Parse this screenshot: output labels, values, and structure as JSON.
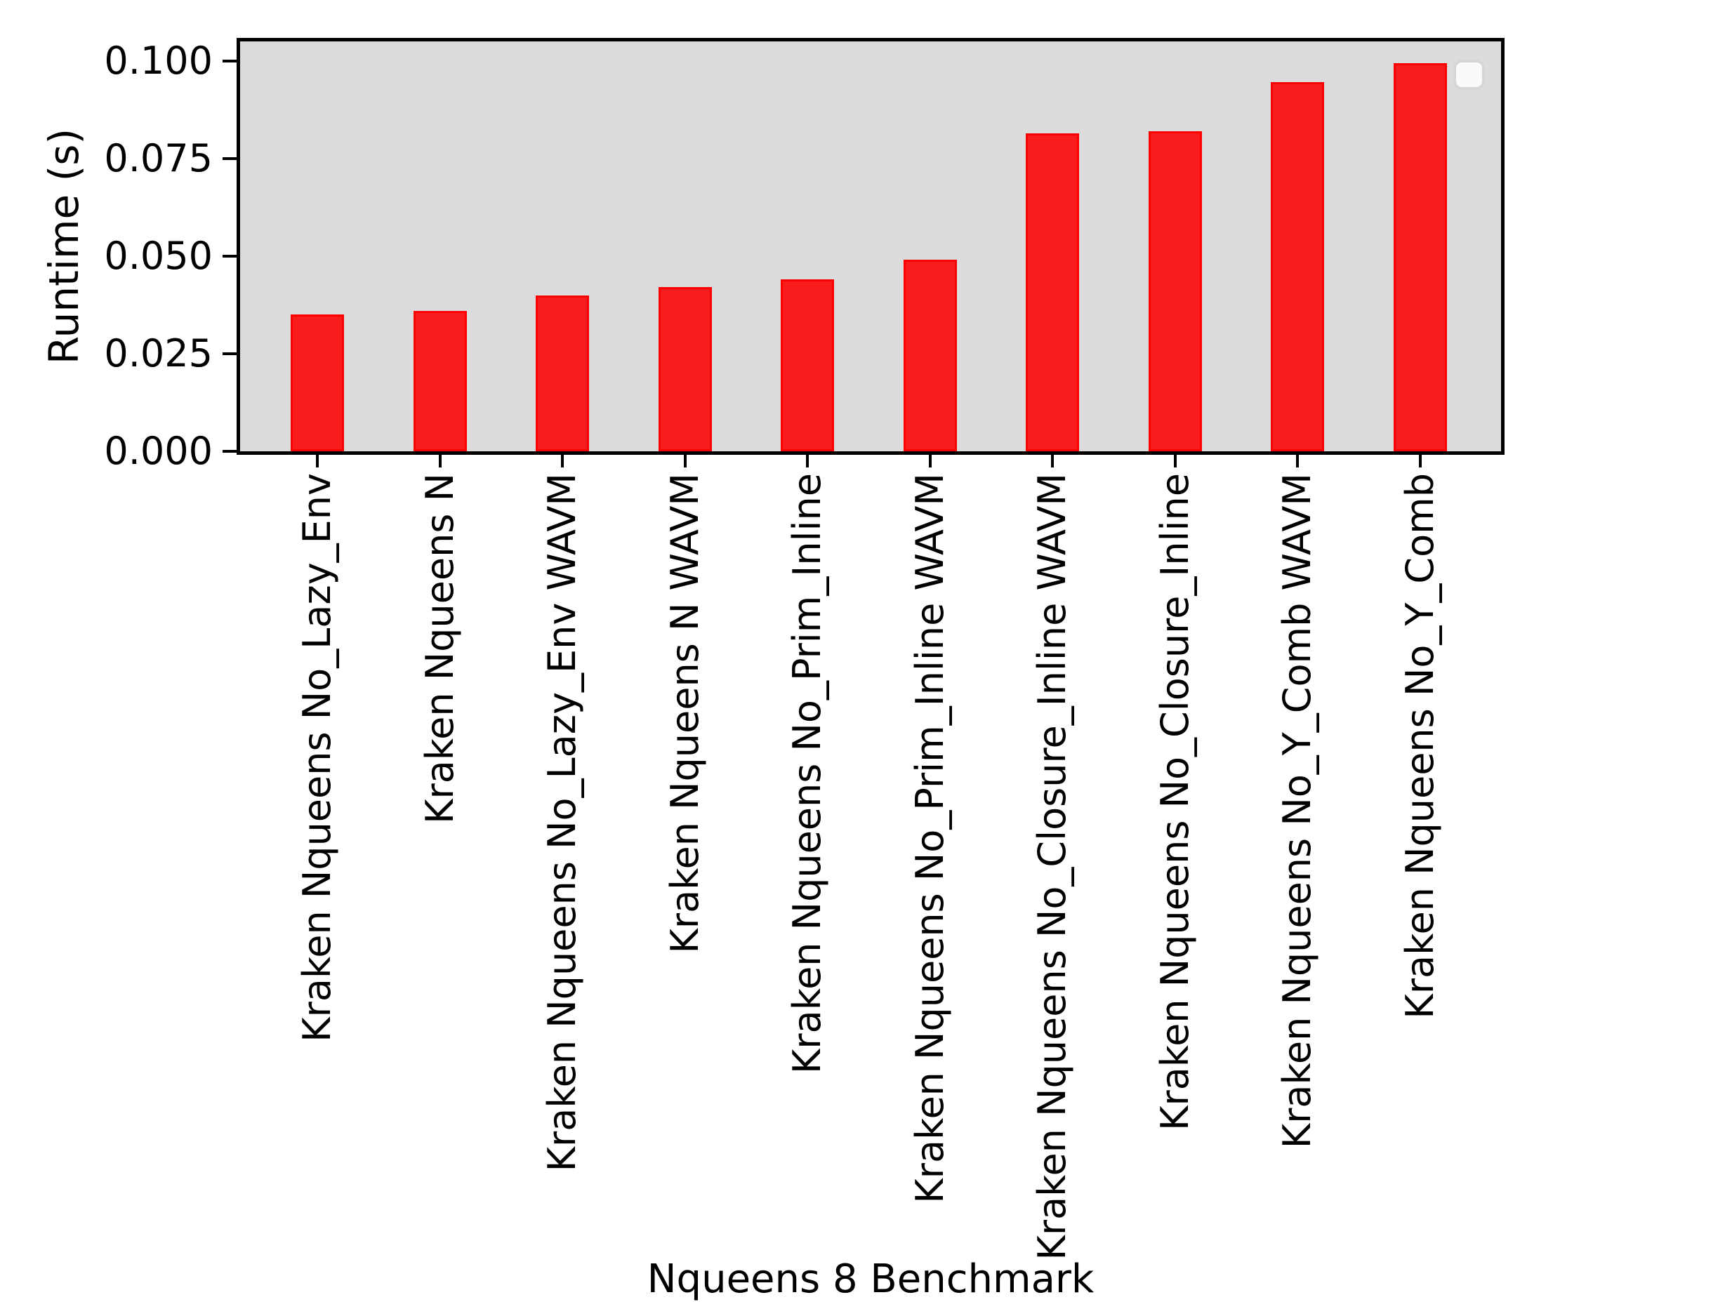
{
  "chart_data": {
    "type": "bar",
    "title": "",
    "xlabel": "Nqueens 8 Benchmark",
    "ylabel": "Runtime (s)",
    "categories": [
      "Kraken Nqueens No_Lazy_Env",
      "Kraken Nqueens N",
      "Kraken Nqueens No_Lazy_Env WAVM",
      "Kraken Nqueens N WAVM",
      "Kraken Nqueens No_Prim_Inline",
      "Kraken Nqueens No_Prim_Inline WAVM",
      "Kraken Nqueens No_Closure_Inline WAVM",
      "Kraken Nqueens No_Closure_Inline",
      "Kraken Nqueens No_Y_Comb WAVM",
      "Kraken Nqueens No_Y_Comb"
    ],
    "values": [
      0.035,
      0.036,
      0.04,
      0.042,
      0.044,
      0.049,
      0.0815,
      0.082,
      0.0945,
      0.0995
    ],
    "ylim": [
      0,
      0.105
    ],
    "yticks": [
      {
        "value": 0.0,
        "label": "0.000"
      },
      {
        "value": 0.025,
        "label": "0.025"
      },
      {
        "value": 0.05,
        "label": "0.050"
      },
      {
        "value": 0.075,
        "label": "0.075"
      },
      {
        "value": 0.1,
        "label": "0.100"
      }
    ],
    "grid": false,
    "legend": {
      "visible": true,
      "entries": []
    },
    "colors": {
      "bar_fill": "#f81d1d",
      "bar_edge": "#fe0000",
      "plot_background": "#dcdcdc",
      "figure_background": "#ffffff",
      "axis": "#000000"
    }
  }
}
